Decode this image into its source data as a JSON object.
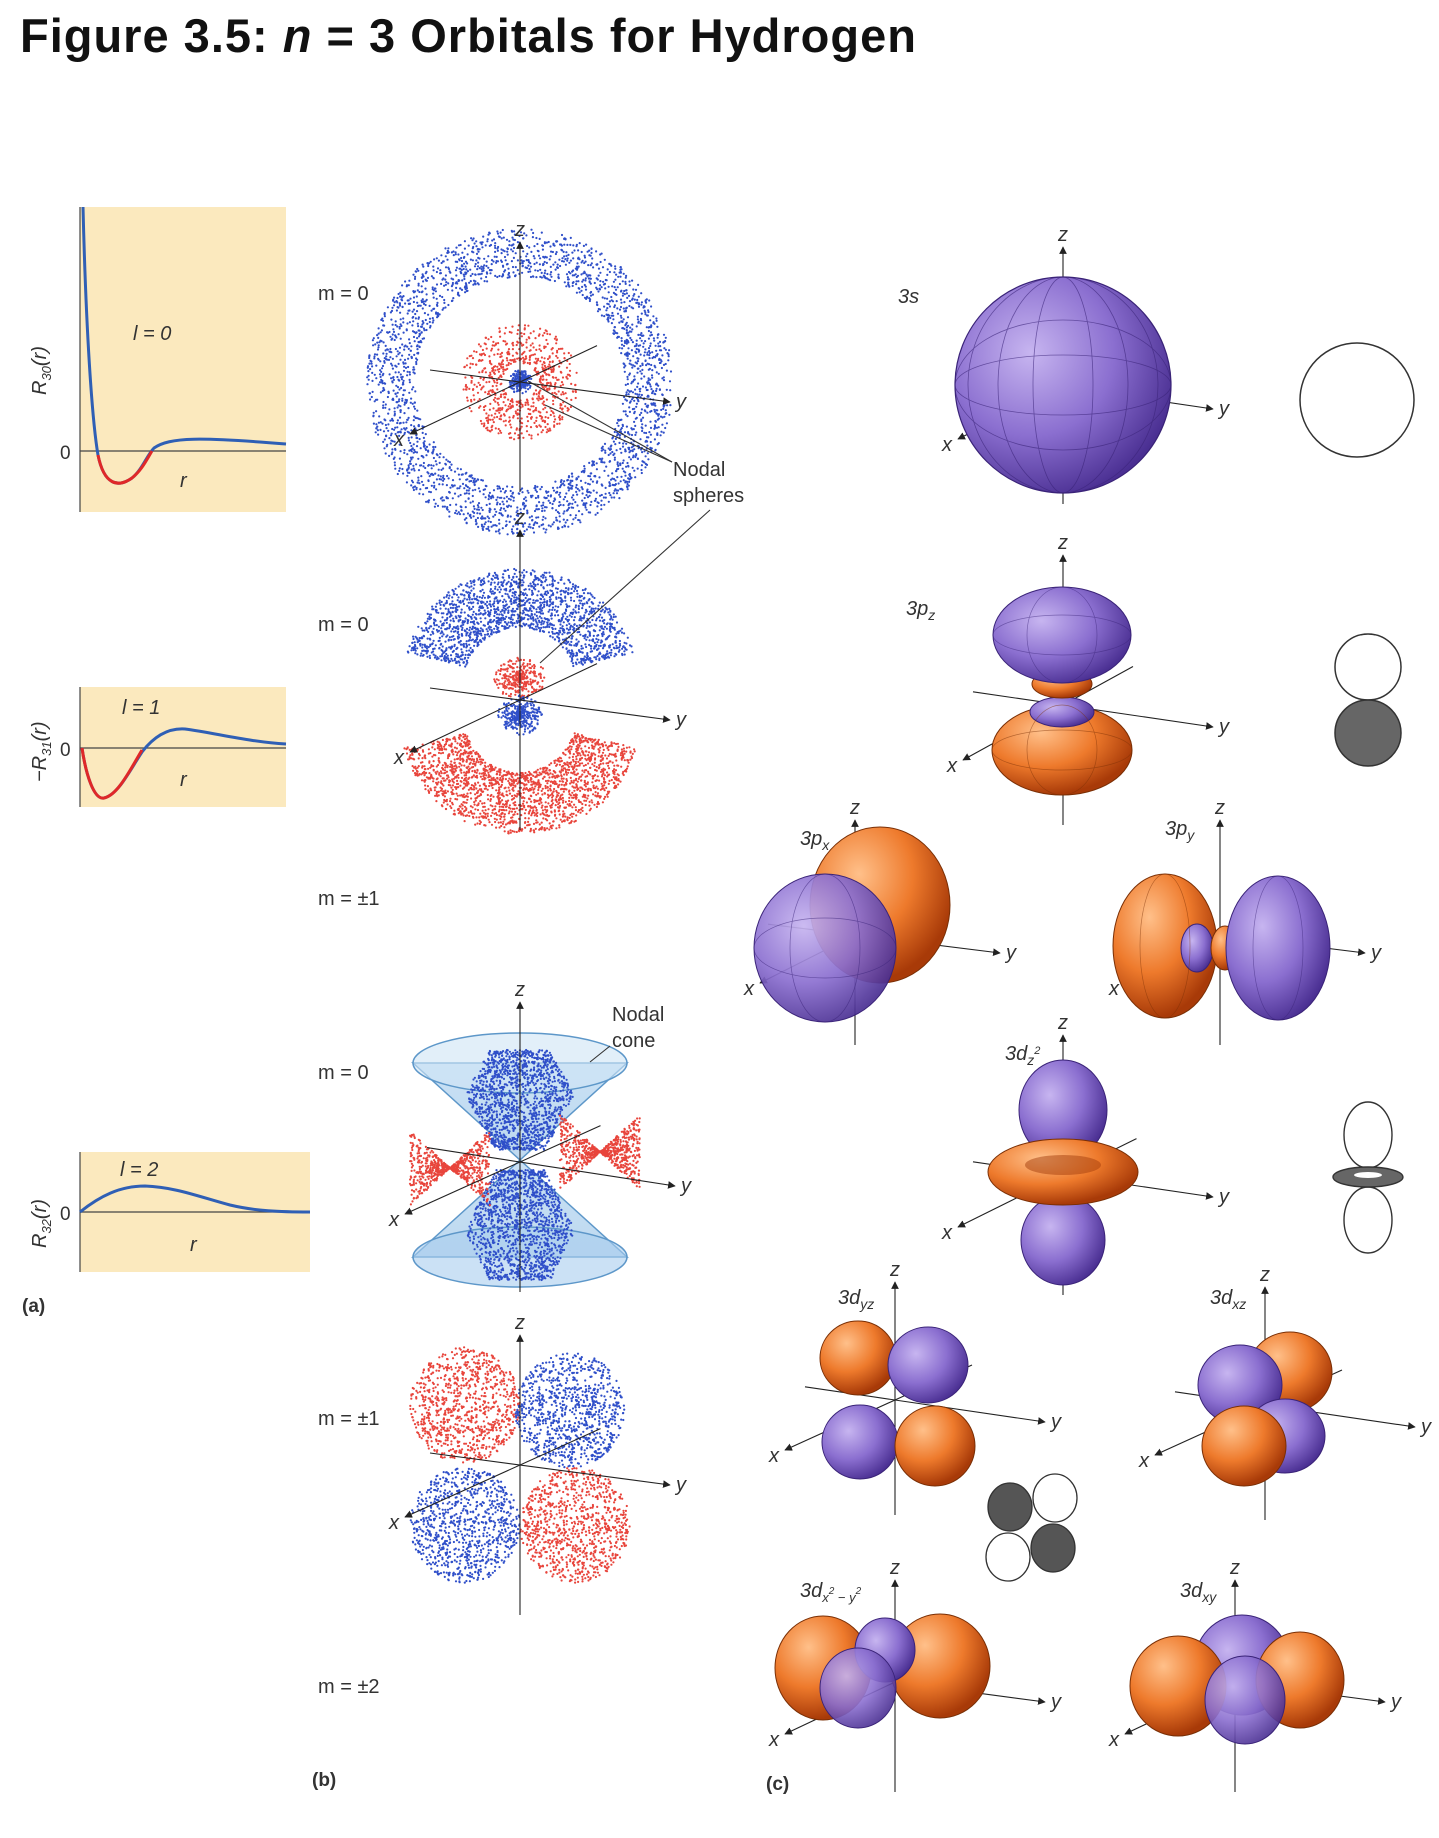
{
  "title": {
    "prefix": "Figure 3.5: ",
    "n": "n",
    "rest": " = 3 Orbitals for Hydrogen"
  },
  "panel_labels": {
    "a": "(a)",
    "b": "(b)",
    "c": "(c)"
  },
  "radial_plots": [
    {
      "ylabel_sign": "",
      "ylabel_sub": "30",
      "l_label": "l = 0",
      "zero": "0",
      "xlabel": "r"
    },
    {
      "ylabel_sign": "−",
      "ylabel_sub": "31",
      "l_label": "l = 1",
      "zero": "0",
      "xlabel": "r"
    },
    {
      "ylabel_sign": "",
      "ylabel_sub": "32",
      "l_label": "l = 2",
      "zero": "0",
      "xlabel": "r"
    }
  ],
  "m_labels": [
    "m = 0",
    "m = 0",
    "m = ±1",
    "m = 0",
    "m = ±1",
    "m = ±2"
  ],
  "annotations": {
    "nodal_spheres": [
      "Nodal",
      "spheres"
    ],
    "nodal_cone": [
      "Nodal",
      "cone"
    ]
  },
  "axes": {
    "x": "x",
    "y": "y",
    "z": "z"
  },
  "orbitals": {
    "s3": "3s",
    "pz": {
      "base": "3p",
      "sub": "z"
    },
    "px": {
      "base": "3p",
      "sub": "x"
    },
    "py": {
      "base": "3p",
      "sub": "y"
    },
    "dz2": {
      "base": "3d",
      "sub": "z",
      "sup": "2"
    },
    "dyz": {
      "base": "3d",
      "sub": "yz"
    },
    "dxz": {
      "base": "3d",
      "sub": "xz"
    },
    "dx2y2": {
      "base": "3d",
      "sub": "x",
      "sub2": "2",
      "mid": " − y",
      "sub3": "2"
    },
    "dxy": {
      "base": "3d",
      "sub": "xy"
    }
  },
  "colors": {
    "panel_bg": "#fbe9be",
    "positive_lobe": "#8b6fd0",
    "negative_lobe": "#e8702a",
    "curve_blue": "#2f5fb5",
    "curve_red": "#e02828",
    "dot_blue": "#2f4fc9",
    "dot_red": "#e8453c",
    "cone": "#9cc5e8"
  }
}
